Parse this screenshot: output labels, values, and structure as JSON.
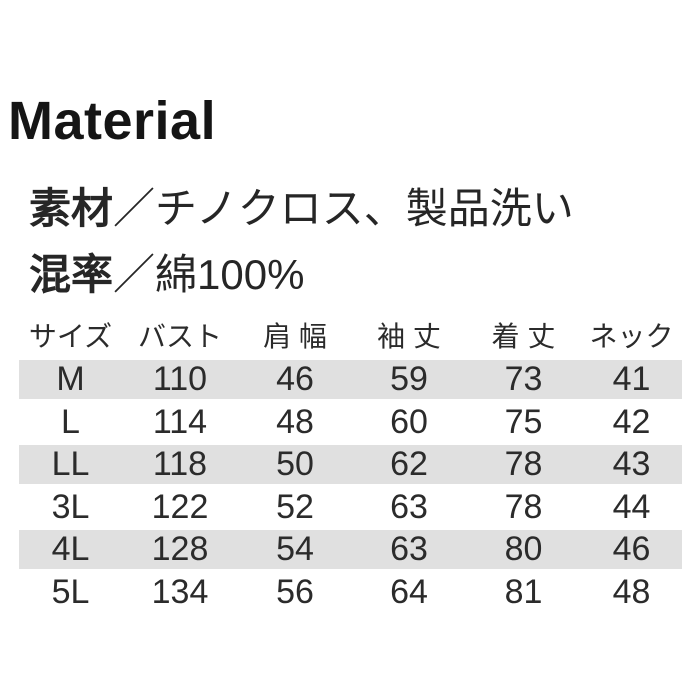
{
  "heading": "Material",
  "specs": [
    {
      "label": "素材",
      "value": "／チノクロス、製品洗い"
    },
    {
      "label": "混率",
      "value": "／綿100%"
    }
  ],
  "size_table": {
    "columns": [
      "サイズ",
      "バスト",
      "肩 幅",
      "袖 丈",
      "着 丈",
      "ネック"
    ],
    "rows": [
      [
        "M",
        "110",
        "46",
        "59",
        "73",
        "41"
      ],
      [
        "L",
        "114",
        "48",
        "60",
        "75",
        "42"
      ],
      [
        "LL",
        "118",
        "50",
        "62",
        "78",
        "43"
      ],
      [
        "3L",
        "122",
        "52",
        "63",
        "78",
        "44"
      ],
      [
        "4L",
        "128",
        "54",
        "63",
        "80",
        "46"
      ],
      [
        "5L",
        "134",
        "56",
        "64",
        "81",
        "48"
      ]
    ],
    "striped_row_indexes": [
      0,
      2,
      4
    ]
  },
  "colors": {
    "stripe": "#e0e0e0",
    "text": "#2b2b2b",
    "heading_text": "#151515"
  }
}
